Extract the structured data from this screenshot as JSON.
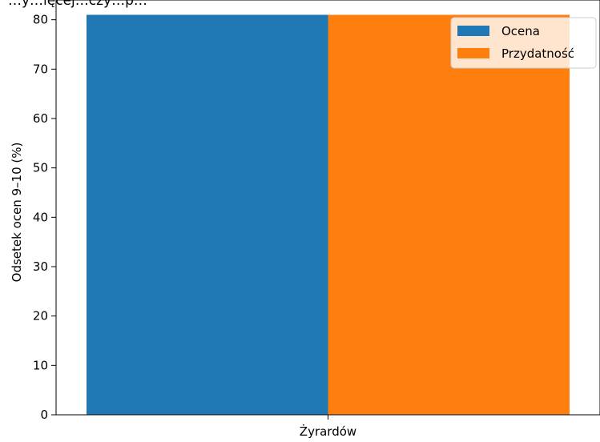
{
  "chart_data": {
    "type": "bar",
    "title": "…y…ięcej…czy…p…",
    "categories": [
      "Żyrardów"
    ],
    "series": [
      {
        "name": "Ocena",
        "values": [
          81
        ],
        "color": "#1f77b4"
      },
      {
        "name": "Przydatność",
        "values": [
          81
        ],
        "color": "#ff7f0e"
      }
    ],
    "xlabel": "",
    "ylabel": "Odsetek ocen 9–10 (%)",
    "ylim": [
      0,
      84
    ],
    "yticks": [
      0,
      10,
      20,
      30,
      40,
      50,
      60,
      70,
      80
    ],
    "grid": false,
    "legend_position": "top-right"
  }
}
